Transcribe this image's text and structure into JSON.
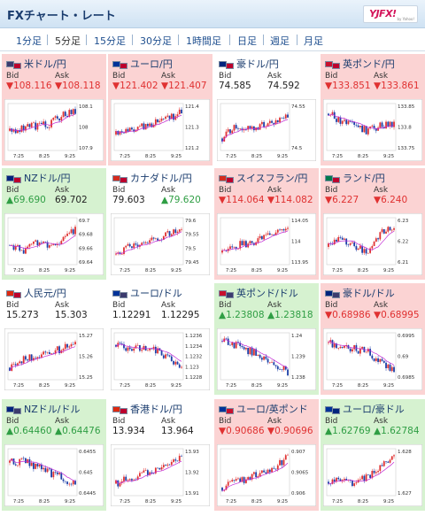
{
  "header": {
    "title": "FXチャート・レート",
    "logo_text": "YJFX!",
    "logo_sub": "by Yahoo!"
  },
  "tabs": [
    "1分足",
    "5分足",
    "15分足",
    "30分足",
    "1時間足",
    "日足",
    "週足",
    "月足"
  ],
  "active_tab": "5分足",
  "labels": {
    "bid": "Bid",
    "ask": "Ask"
  },
  "x_ticks": [
    "7:25",
    "8:25",
    "9:25"
  ],
  "colors": {
    "down_bg": "#fbd3d3",
    "up_bg": "#d6f2d0",
    "red": "#e03131",
    "green": "#2f9e44",
    "ma": "#c025d3"
  },
  "panels": [
    {
      "name": "米ドル/円",
      "dir": "down",
      "bid": "▼108.116",
      "ask": "▼108.118",
      "flag_a": "#3c3b6e",
      "flag_b": "#bc002d",
      "y_ticks": [
        "108.1",
        "108",
        "107.9"
      ],
      "trend": [
        -0.2,
        -0.05,
        0.05,
        0.15,
        0.6,
        0.85
      ]
    },
    {
      "name": "ユーロ/円",
      "dir": "down",
      "bid": "▼121.402",
      "ask": "▼121.407",
      "flag_a": "#003399",
      "flag_b": "#bc002d",
      "y_ticks": [
        "121.4",
        "121.3",
        "121.2"
      ],
      "trend": [
        -0.4,
        -0.1,
        0.0,
        0.2,
        0.45,
        0.8
      ]
    },
    {
      "name": "豪ドル/円",
      "dir": "neutral",
      "bid": "74.585",
      "ask": "74.592",
      "flag_a": "#00247d",
      "flag_b": "#bc002d",
      "y_ticks": [
        "74.55",
        "74.5"
      ],
      "trend": [
        -0.6,
        0.1,
        -0.1,
        0.1,
        0.2,
        0.5
      ]
    },
    {
      "name": "英ポンド/円",
      "dir": "down",
      "bid": "▼133.851",
      "ask": "▼133.861",
      "flag_a": "#c8102e",
      "flag_b": "#bc002d",
      "y_ticks": [
        "133.85",
        "133.8",
        "133.75"
      ],
      "trend": [
        0.7,
        0.3,
        0.0,
        -0.2,
        0.1,
        0.2
      ]
    },
    {
      "name": "NZドル/円",
      "dir": "up",
      "bid": "▲69.690",
      "ask": "69.702",
      "flag_a": "#00247d",
      "flag_b": "#bc002d",
      "y_ticks": [
        "69.7",
        "69.68",
        "69.66",
        "69.64"
      ],
      "trend": [
        -0.2,
        -0.5,
        0.0,
        -0.3,
        0.1,
        0.6
      ]
    },
    {
      "name": "カナダドル/円",
      "dir": "neutral",
      "bid": "79.603",
      "ask": "▲79.620",
      "flag_a": "#d52b1e",
      "flag_b": "#bc002d",
      "y_ticks": [
        "79.6",
        "79.55",
        "79.5",
        "79.45"
      ],
      "trend": [
        -0.7,
        -0.3,
        -0.1,
        0.1,
        0.4,
        0.8
      ]
    },
    {
      "name": "スイスフラン/円",
      "dir": "down",
      "bid": "▼114.064",
      "ask": "▼114.082",
      "flag_a": "#d52b1e",
      "flag_b": "#bc002d",
      "y_ticks": [
        "114.05",
        "114",
        "113.95"
      ],
      "trend": [
        -0.6,
        -0.2,
        -0.1,
        0.1,
        0.4,
        0.8
      ]
    },
    {
      "name": "ランド/円",
      "dir": "down",
      "bid": "▼6.227",
      "ask": "▼6.240",
      "flag_a": "#007a4d",
      "flag_b": "#bc002d",
      "y_ticks": [
        "6.23",
        "6.22",
        "6.21"
      ],
      "trend": [
        -0.3,
        0.1,
        -0.2,
        -0.6,
        0.4,
        0.7
      ]
    },
    {
      "name": "人民元/円",
      "dir": "neutral",
      "bid": "15.273",
      "ask": "15.303",
      "flag_a": "#de2910",
      "flag_b": "#bc002d",
      "y_ticks": [
        "15.27",
        "15.26",
        "15.25"
      ],
      "trend": [
        -0.6,
        -0.2,
        0.0,
        0.2,
        0.4,
        0.7
      ]
    },
    {
      "name": "ユーロ/ドル",
      "dir": "neutral",
      "bid": "1.12291",
      "ask": "1.12295",
      "flag_a": "#003399",
      "flag_b": "#3c3b6e",
      "y_ticks": [
        "1.1236",
        "1.1234",
        "1.1232",
        "1.123",
        "1.1228"
      ],
      "trend": [
        0.6,
        0.4,
        0.5,
        0.3,
        -0.1,
        -0.7
      ]
    },
    {
      "name": "英ポンド/ドル",
      "dir": "up",
      "bid": "▲1.23808",
      "ask": "▲1.23818",
      "flag_a": "#c8102e",
      "flag_b": "#3c3b6e",
      "y_ticks": [
        "1.24",
        "1.239",
        "1.238"
      ],
      "trend": [
        0.8,
        0.6,
        0.3,
        0.0,
        -0.4,
        -0.8
      ]
    },
    {
      "name": "豪ドル/ドル",
      "dir": "down",
      "bid": "▼0.68986",
      "ask": "▼0.68995",
      "flag_a": "#00247d",
      "flag_b": "#3c3b6e",
      "y_ticks": [
        "0.6995",
        "0.69",
        "0.6985"
      ],
      "trend": [
        0.7,
        0.5,
        0.4,
        0.2,
        -0.3,
        -0.7
      ]
    },
    {
      "name": "NZドル/ドル",
      "dir": "up",
      "bid": "▲0.64460",
      "ask": "▲0.64476",
      "flag_a": "#00247d",
      "flag_b": "#3c3b6e",
      "y_ticks": [
        "0.6455",
        "0.645",
        "0.6445"
      ],
      "trend": [
        0.5,
        0.6,
        0.3,
        0.0,
        -0.3,
        -0.6
      ]
    },
    {
      "name": "香港ドル/円",
      "dir": "neutral",
      "bid": "13.934",
      "ask": "13.964",
      "flag_a": "#de2910",
      "flag_b": "#bc002d",
      "y_ticks": [
        "13.93",
        "13.92",
        "13.91"
      ],
      "trend": [
        -0.6,
        -0.3,
        -0.1,
        0.1,
        0.3,
        0.8
      ]
    },
    {
      "name": "ユーロ/英ポンド",
      "dir": "down",
      "bid": "▼0.90686",
      "ask": "▼0.90696",
      "flag_a": "#003399",
      "flag_b": "#c8102e",
      "y_ticks": [
        "0.907",
        "0.9065",
        "0.906"
      ],
      "trend": [
        -0.8,
        -0.5,
        -0.3,
        0.0,
        0.3,
        0.8
      ]
    },
    {
      "name": "ユーロ/豪ドル",
      "dir": "up",
      "bid": "▲1.62769",
      "ask": "▲1.62784",
      "flag_a": "#003399",
      "flag_b": "#00247d",
      "y_ticks": [
        "1.628",
        "1.627"
      ],
      "trend": [
        -0.5,
        -0.3,
        -0.6,
        -0.2,
        0.3,
        0.7
      ]
    }
  ]
}
